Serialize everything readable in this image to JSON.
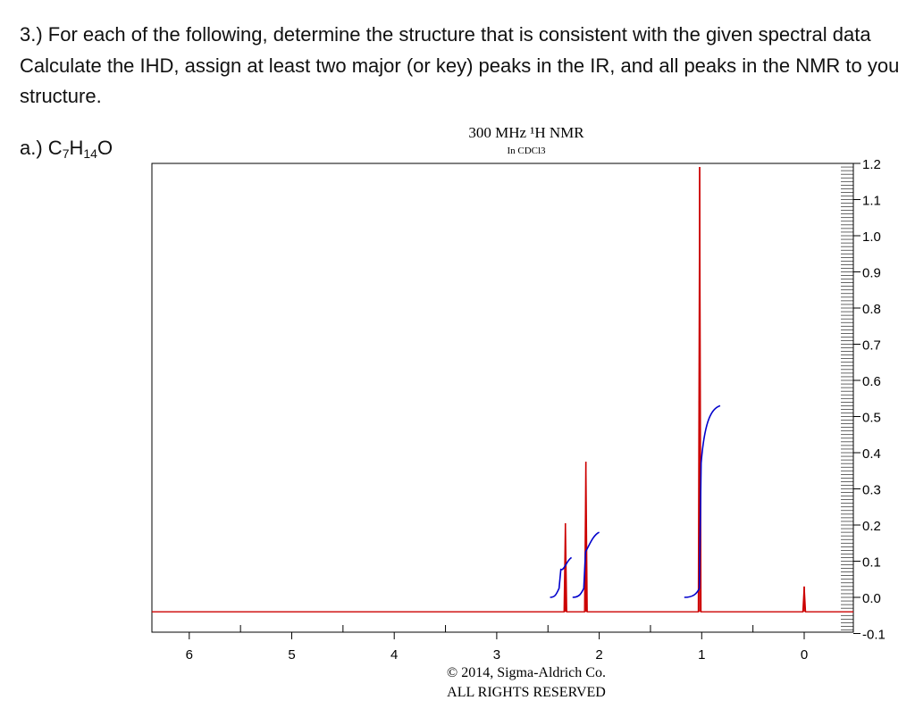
{
  "question": {
    "line1": "3.) For each of the following, determine the structure that is consistent with the given spectral data",
    "line2": "Calculate the IHD, assign at least two major (or key) peaks in the IR, and all peaks in the NMR to you",
    "line3": "structure."
  },
  "part": {
    "label": "a.) ",
    "formula": [
      {
        "text": "C",
        "sub": false
      },
      {
        "text": "7",
        "sub": true
      },
      {
        "text": "H",
        "sub": false
      },
      {
        "text": "14",
        "sub": true
      },
      {
        "text": "O",
        "sub": false
      }
    ]
  },
  "colors": {
    "spectrum": "#cc0000",
    "integral": "#0000cc",
    "axis": "#000000"
  },
  "chart_data": {
    "type": "line",
    "title": "300 MHz ¹H NMR",
    "subtitle": "In CDCl3",
    "xlabel": "",
    "ylabel": "",
    "xlim": [
      6.4,
      -0.6
    ],
    "ylim": [
      -0.1,
      1.25
    ],
    "x_ticks": [
      "6",
      "5",
      "4",
      "3",
      "2",
      "1",
      "0"
    ],
    "y_ticks": [
      "1.2",
      "1.1",
      "1.0",
      "0.9",
      "0.8",
      "0.7",
      "0.6",
      "0.5",
      "0.4",
      "0.3",
      "0.2",
      "0.1",
      "0.0",
      "-0.1"
    ],
    "baseline": -0.04,
    "peaks": [
      {
        "x": 2.33,
        "y": 0.205
      },
      {
        "x": 2.13,
        "y": 0.375
      },
      {
        "x": 1.02,
        "y": 1.19
      },
      {
        "x": 0.0,
        "y": 0.03
      }
    ],
    "integrals": [
      {
        "x_start": 2.48,
        "x_end": 2.27,
        "y_start": 0.0,
        "y_end": 0.11
      },
      {
        "x_start": 2.26,
        "x_end": 2.0,
        "y_start": 0.0,
        "y_end": 0.18
      },
      {
        "x_start": 1.17,
        "x_end": 0.82,
        "y_start": 0.0,
        "y_end": 0.53
      }
    ],
    "footer_line1": "© 2014, Sigma-Aldrich Co.",
    "footer_line2": "ALL RIGHTS RESERVED"
  }
}
